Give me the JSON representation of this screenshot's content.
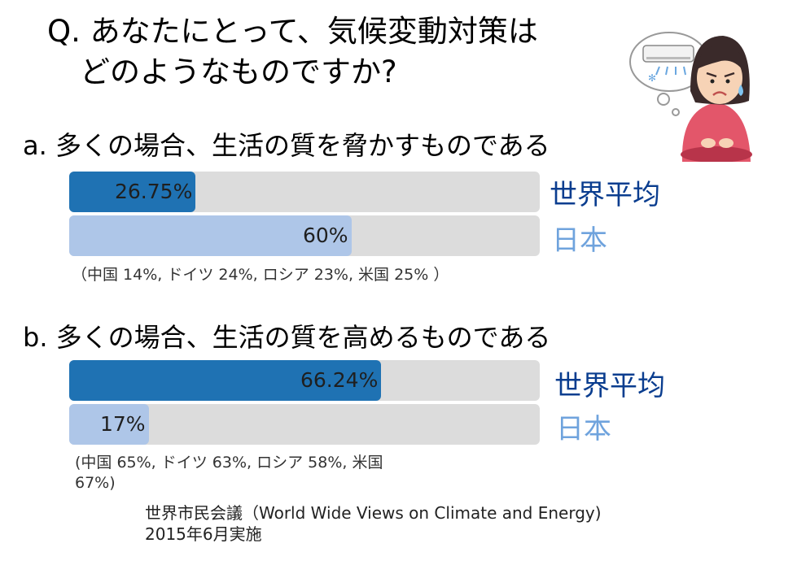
{
  "question": {
    "line1": "Q. あなたにとって、気候変動対策は",
    "line2": "どのようなものですか?"
  },
  "colors": {
    "world": "#1f72b3",
    "japan": "#aec6e8",
    "track": "#dcdcdc",
    "legend_world": "#0a3d8f",
    "legend_japan": "#6fa3dd"
  },
  "chart_data": [
    {
      "type": "bar",
      "orientation": "horizontal",
      "title": "a.  多くの場合、生活の質を脅かすものである",
      "categories": [
        "世界平均",
        "日本"
      ],
      "values": [
        26.75,
        60
      ],
      "value_labels": [
        "26.75%",
        "60%"
      ],
      "xlim": [
        0,
        100
      ],
      "note": "（中国 14%, ドイツ 24%, ロシア 23%, 米国 25% ）"
    },
    {
      "type": "bar",
      "orientation": "horizontal",
      "title": "b.  多くの場合、生活の質を高めるものである",
      "categories": [
        "世界平均",
        "日本"
      ],
      "values": [
        66.24,
        17
      ],
      "value_labels": [
        "66.24%",
        "17%"
      ],
      "xlim": [
        0,
        100
      ],
      "note_line1": "(中国 65%, ドイツ 63%, ロシア 58%, 米国",
      "note_line2": "67%)"
    }
  ],
  "source": {
    "line1": "世界市民会議（World Wide Views on Climate and Energy)",
    "line2": "2015年6月実施"
  },
  "illustration": {
    "icon": "worried-person-air-conditioner-icon"
  }
}
